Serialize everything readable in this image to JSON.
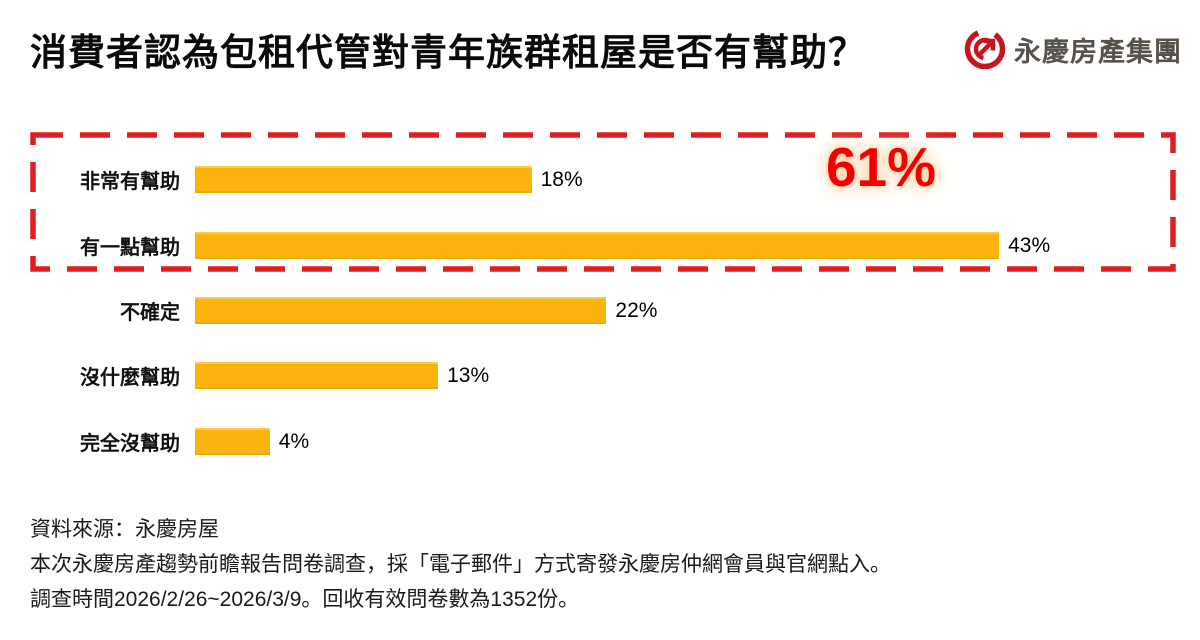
{
  "title": "消費者認為包租代管對青年族群租屋是否有幫助？",
  "logo": {
    "name": "永慶房產集團"
  },
  "colors": {
    "bar": "#FBB40D",
    "highlight_border": "#E01E20",
    "highlight_text": "#F50000",
    "logo_mark": "#C4161C",
    "logo_text": "#57514B"
  },
  "chart_data": {
    "type": "bar",
    "orientation": "horizontal",
    "title": "消費者認為包租代管對青年族群租屋是否有幫助？",
    "categories": [
      "非常有幫助",
      "有一點幫助",
      "不確定",
      "沒什麼幫助",
      "完全沒幫助"
    ],
    "values": [
      18,
      43,
      22,
      13,
      4
    ],
    "value_labels": [
      "18%",
      "43%",
      "22%",
      "13%",
      "4%"
    ],
    "unit": "%",
    "xlim": [
      0,
      47
    ],
    "grid": false,
    "legend": false,
    "highlight": {
      "label": "61%",
      "categories": [
        "非常有幫助",
        "有一點幫助"
      ]
    }
  },
  "footer": {
    "source": "資料來源：永慶房屋",
    "method": "本次永慶房產趨勢前瞻報告問卷調查，採「電子郵件」方式寄發永慶房仲網會員與官網點入。",
    "period": "調查時間2026/2/26~2026/3/9。回收有效問卷數為1352份。"
  }
}
